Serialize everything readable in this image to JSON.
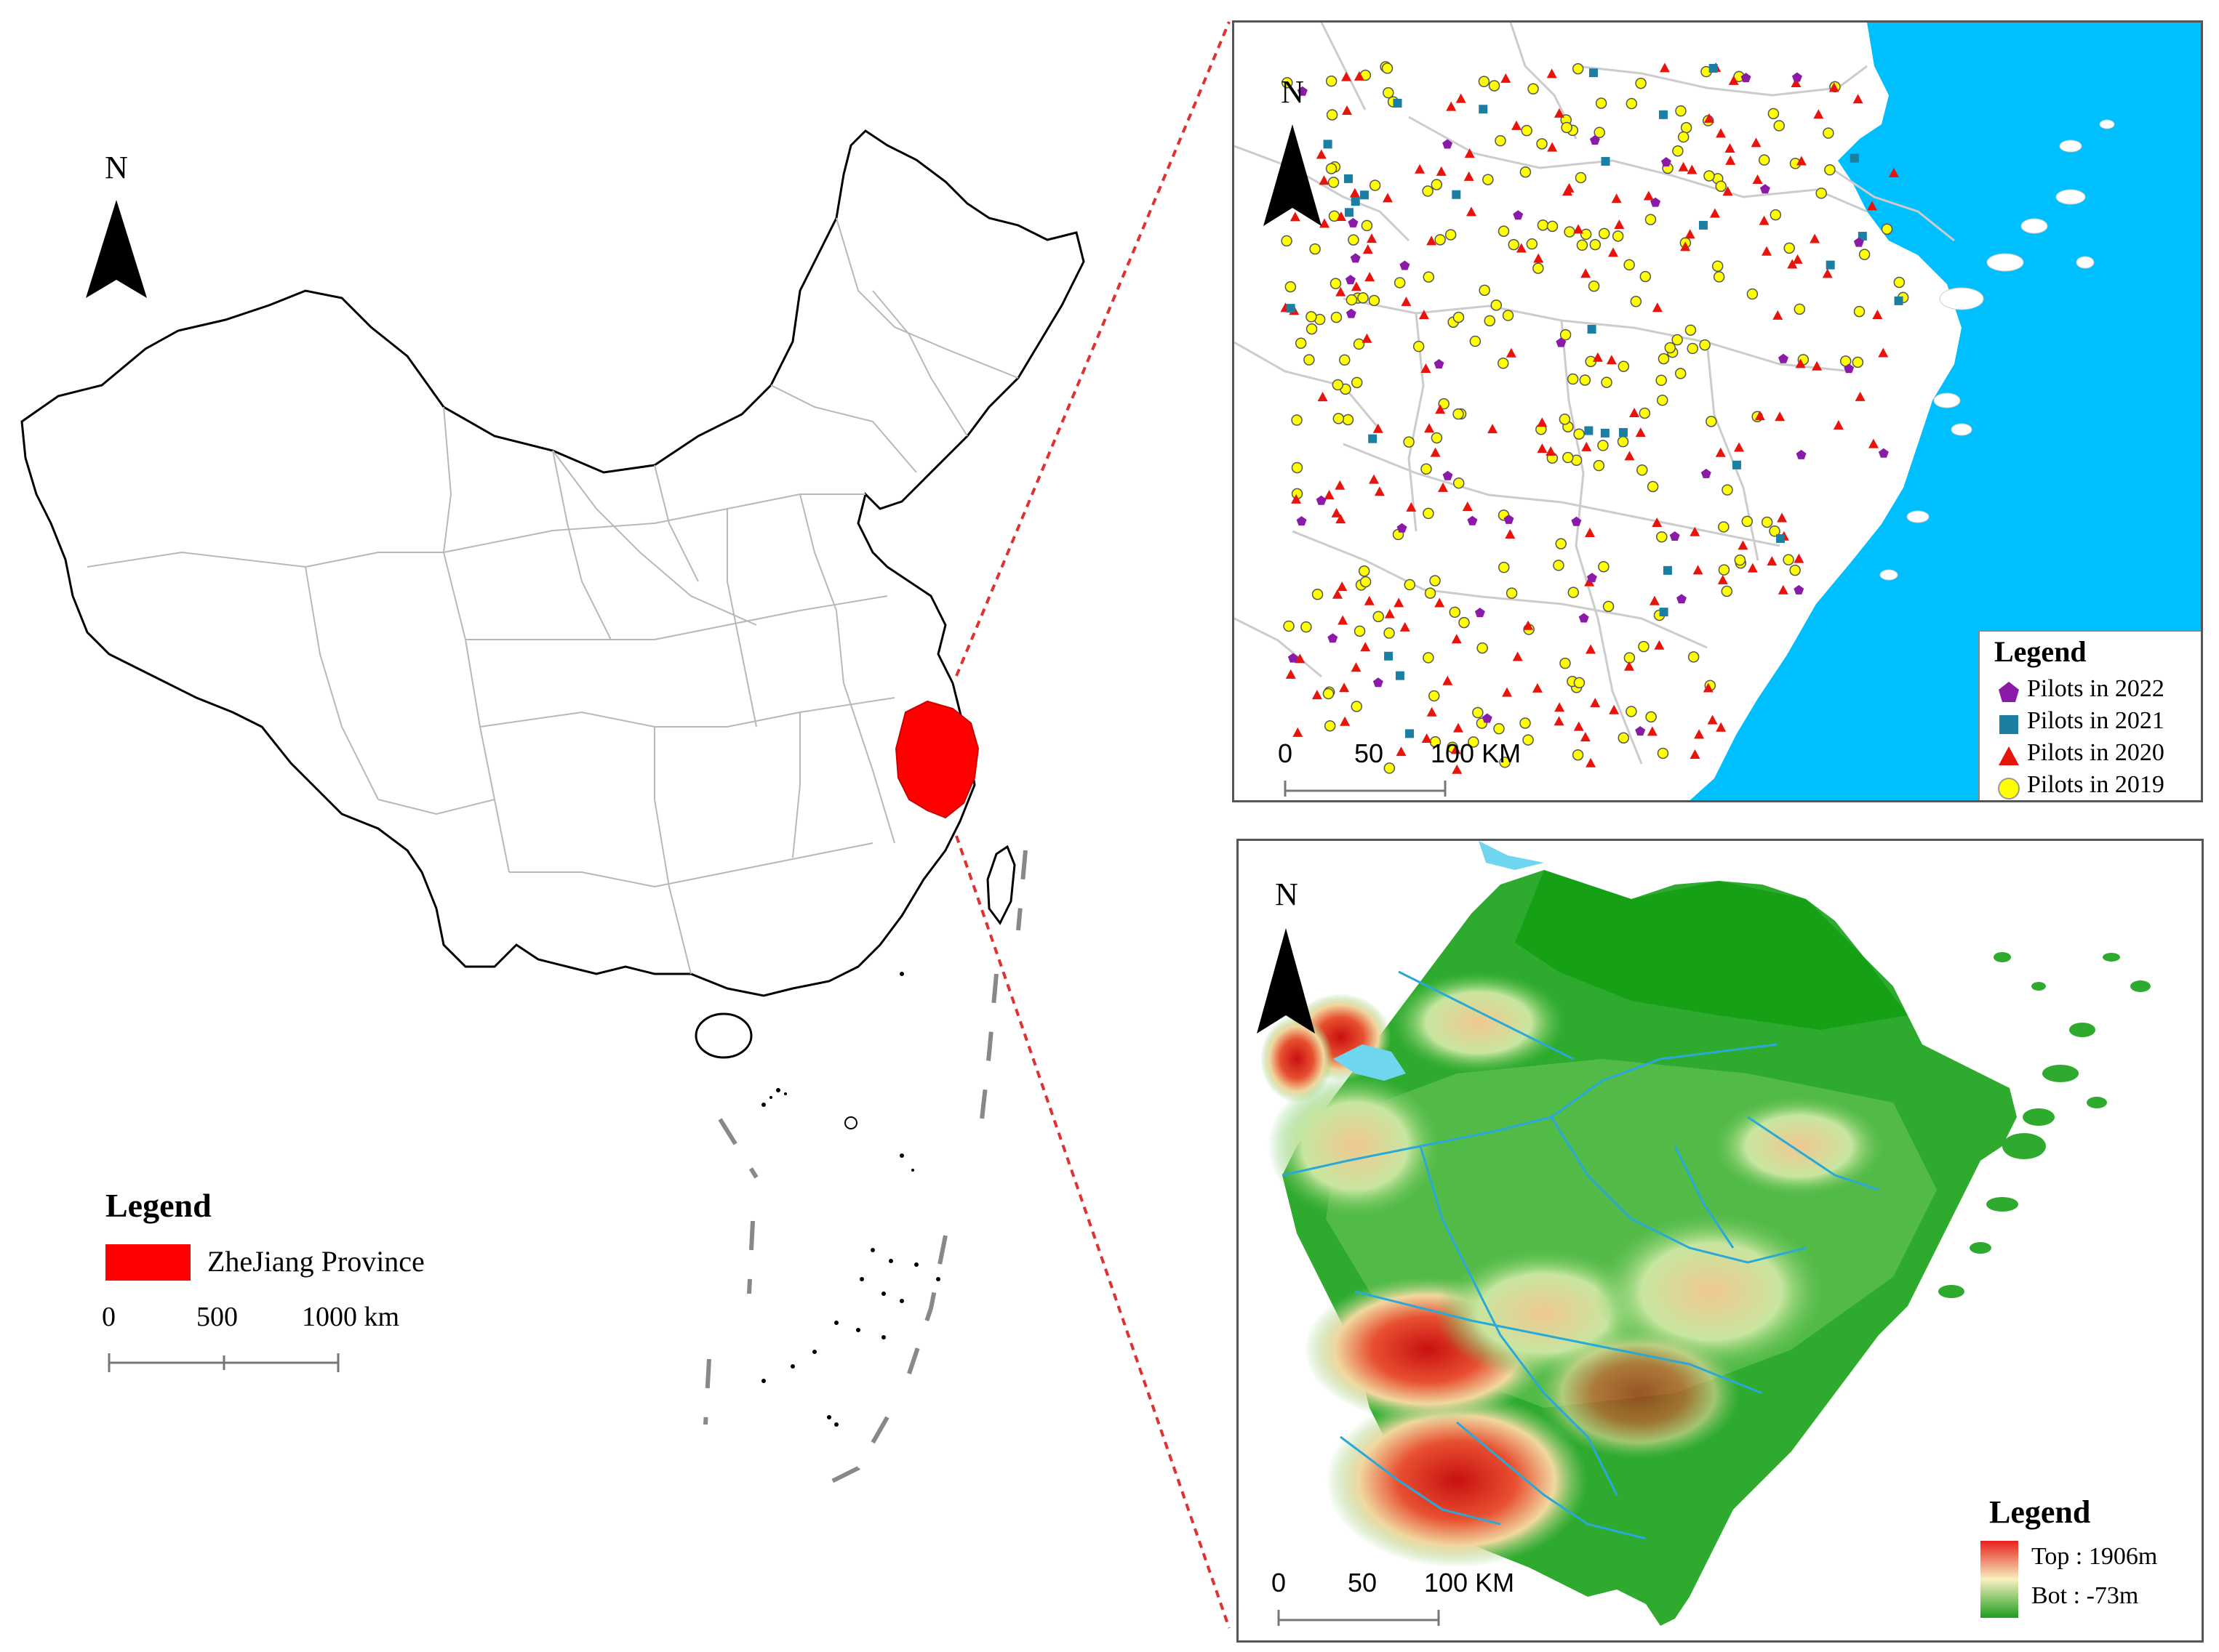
{
  "china_map": {
    "north_label": "N",
    "legend": {
      "title": "Legend",
      "items": [
        {
          "label": "ZheJiang Province",
          "color": "#ff0000"
        }
      ]
    },
    "scale": {
      "ticks": [
        "0",
        "500",
        "1000 km"
      ]
    }
  },
  "pilots_map": {
    "north_label": "N",
    "legend": {
      "title": "Legend",
      "items": [
        {
          "label": "Pilots in 2022",
          "symbol": "pentagon",
          "color": "#8b1aa8"
        },
        {
          "label": "Pilots in 2021",
          "symbol": "square",
          "color": "#1b7fa3"
        },
        {
          "label": "Pilots in 2020",
          "symbol": "triangle",
          "color": "#e8140c"
        },
        {
          "label": "Pilots in 2019",
          "symbol": "circle",
          "color": "#ffff00"
        }
      ]
    },
    "scale": {
      "ticks": [
        "0",
        "50",
        "100 KM"
      ]
    },
    "sea_color": "#00bfff"
  },
  "elevation_map": {
    "north_label": "N",
    "legend": {
      "title": "Legend",
      "items": [
        {
          "label": "Top : 1906m",
          "color": "#e8201c"
        },
        {
          "label": "Bot : -73m",
          "color": "#1e9e1e"
        }
      ]
    },
    "scale": {
      "ticks": [
        "0",
        "50",
        "100 KM"
      ]
    }
  }
}
